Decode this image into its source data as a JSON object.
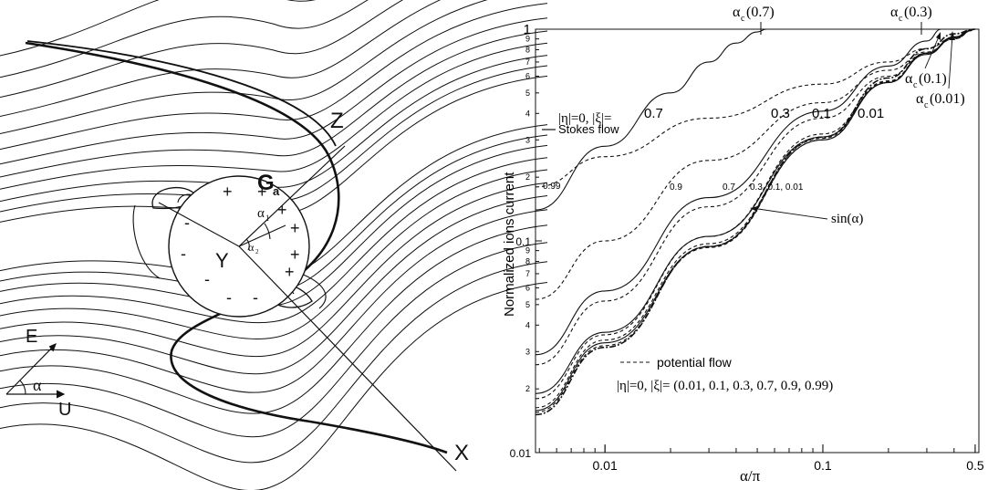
{
  "left_panel": {
    "axis_labels": {
      "z": "Z",
      "x": "X",
      "y": "Y"
    },
    "ga_label": {
      "main": "G",
      "sub": "a"
    },
    "vector_labels": {
      "e": "E",
      "u": "U",
      "alpha": "α"
    },
    "alpha1_label": {
      "main": "α",
      "sub": "1"
    },
    "alpha2_label": {
      "main": "α",
      "sub": "2"
    },
    "plus_sign": "+",
    "minus_sign": "-"
  },
  "chart_data": {
    "type": "line",
    "xlabel": "α/π",
    "ylabel": "Normalized ions current",
    "xscale": "log",
    "yscale": "log",
    "xlim": [
      0.0048,
      0.52
    ],
    "ylim": [
      0.01,
      1.0
    ],
    "x_ticks": [
      "0.01",
      "0.1",
      "0.5"
    ],
    "y_ticks": [
      "0.01",
      "0.1",
      "1"
    ],
    "y_minor_tick_labels": [
      "2",
      "3",
      "4",
      "5",
      "6",
      "7",
      "8",
      "9",
      "2",
      "3",
      "4",
      "5",
      "6",
      "7",
      "8",
      "9"
    ],
    "grid": false,
    "series": [
      {
        "style": "solid",
        "xi": "0.7",
        "x": [
          0.0048,
          0.01,
          0.02,
          0.03,
          0.04,
          0.05,
          0.055,
          0.08
        ],
        "y": [
          0.14,
          0.28,
          0.5,
          0.7,
          0.86,
          0.97,
          1.0,
          1.0
        ]
      },
      {
        "style": "solid",
        "xi": "0.3",
        "x": [
          0.0048,
          0.01,
          0.03,
          0.1,
          0.2,
          0.3,
          0.35,
          0.5
        ],
        "y": [
          0.029,
          0.058,
          0.16,
          0.41,
          0.67,
          0.88,
          1.0,
          1.0
        ]
      },
      {
        "style": "solid",
        "xi": "0.1",
        "x": [
          0.0048,
          0.01,
          0.03,
          0.1,
          0.2,
          0.3,
          0.4,
          0.47,
          0.5
        ],
        "y": [
          0.019,
          0.037,
          0.105,
          0.31,
          0.56,
          0.76,
          0.91,
          0.98,
          1.0
        ]
      },
      {
        "style": "solid",
        "xi": "0.01",
        "x": [
          0.0048,
          0.01,
          0.03,
          0.1,
          0.2,
          0.3,
          0.4,
          0.5
        ],
        "y": [
          0.0158,
          0.033,
          0.094,
          0.3,
          0.56,
          0.77,
          0.92,
          1.0
        ]
      },
      {
        "style": "dashed",
        "xi": "0.99",
        "x": [
          0.0048,
          0.01,
          0.03,
          0.1,
          0.2,
          0.3,
          0.4,
          0.5
        ],
        "y": [
          0.18,
          0.25,
          0.38,
          0.55,
          0.7,
          0.81,
          0.91,
          1.0
        ]
      },
      {
        "style": "dashed",
        "xi": "0.9",
        "x": [
          0.0048,
          0.01,
          0.03,
          0.1,
          0.2,
          0.3,
          0.4,
          0.5
        ],
        "y": [
          0.053,
          0.1,
          0.24,
          0.45,
          0.64,
          0.78,
          0.9,
          1.0
        ]
      },
      {
        "style": "dashed",
        "xi": "0.7",
        "x": [
          0.0048,
          0.01,
          0.03,
          0.1,
          0.2,
          0.3,
          0.4,
          0.5
        ],
        "y": [
          0.026,
          0.052,
          0.145,
          0.38,
          0.6,
          0.77,
          0.9,
          1.0
        ]
      },
      {
        "style": "dashed",
        "xi": "0.3",
        "x": [
          0.0048,
          0.01,
          0.03,
          0.1,
          0.2,
          0.3,
          0.4,
          0.5
        ],
        "y": [
          0.018,
          0.036,
          0.105,
          0.32,
          0.57,
          0.77,
          0.91,
          1.0
        ]
      },
      {
        "style": "dashed",
        "xi": "0.1",
        "x": [
          0.0048,
          0.01,
          0.03,
          0.1,
          0.2,
          0.3,
          0.4,
          0.5
        ],
        "y": [
          0.0163,
          0.034,
          0.097,
          0.305,
          0.565,
          0.77,
          0.91,
          1.0
        ]
      },
      {
        "style": "dashed",
        "xi": "0.01",
        "x": [
          0.0048,
          0.01,
          0.03,
          0.1,
          0.2,
          0.3,
          0.4,
          0.5
        ],
        "y": [
          0.0155,
          0.032,
          0.093,
          0.3,
          0.56,
          0.77,
          0.92,
          1.0
        ]
      },
      {
        "style": "dashdot",
        "name": "sin(α)",
        "x": [
          0.0048,
          0.01,
          0.03,
          0.1,
          0.2,
          0.3,
          0.4,
          0.5
        ],
        "y": [
          0.0151,
          0.0314,
          0.094,
          0.309,
          0.588,
          0.809,
          0.951,
          1.0
        ]
      }
    ],
    "annotations": {
      "stokes_header": "|η|=0, |ξ|=",
      "stokes_legend": "Stokes flow",
      "stokes_labels": [
        "0.7",
        "0.3",
        "0.1",
        "0.01"
      ],
      "potential_curve_labels": [
        "0.99",
        "0.9",
        "0.7",
        "0.3, 0.1, 0.01"
      ],
      "sin_label": "sin(α)",
      "potential_legend": "potential flow",
      "potential_values": "|η|=0, |ξ|= (0.01, 0.1, 0.3, 0.7, 0.9, 0.99)",
      "critical": [
        {
          "main": "α",
          "sub": "c",
          "value": "(0.7)"
        },
        {
          "main": "α",
          "sub": "c",
          "value": "(0.3)"
        },
        {
          "main": "α",
          "sub": "c",
          "value": "(0.1)"
        },
        {
          "main": "α",
          "sub": "c",
          "value": "(0.01)"
        }
      ]
    }
  }
}
